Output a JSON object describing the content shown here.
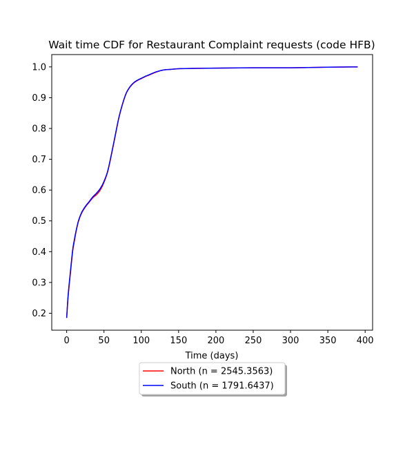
{
  "chart_data": {
    "type": "line",
    "title": "Wait time CDF for Restaurant Complaint  requests (code HFB)",
    "xlabel": "Time (days)",
    "ylabel": "",
    "xlim": [
      -20,
      410
    ],
    "ylim": [
      0.145,
      1.04
    ],
    "xticks": [
      0,
      50,
      100,
      150,
      200,
      250,
      300,
      350,
      400
    ],
    "yticks": [
      0.2,
      0.3,
      0.4,
      0.5,
      0.6,
      0.7,
      0.8,
      0.9,
      1.0
    ],
    "legend_position": "bottom-center",
    "series": [
      {
        "name": "North (n = 2545.3563)",
        "color": "#ff0000",
        "x": [
          0,
          2,
          5,
          8,
          10,
          13,
          16,
          20,
          25,
          30,
          35,
          40,
          45,
          50,
          55,
          60,
          65,
          70,
          75,
          80,
          85,
          90,
          95,
          100,
          105,
          110,
          120,
          130,
          140,
          150,
          170,
          200,
          250,
          300,
          350,
          390
        ],
        "y": [
          0.185,
          0.255,
          0.33,
          0.4,
          0.43,
          0.47,
          0.5,
          0.525,
          0.545,
          0.56,
          0.575,
          0.585,
          0.6,
          0.625,
          0.66,
          0.715,
          0.775,
          0.835,
          0.88,
          0.915,
          0.935,
          0.948,
          0.956,
          0.962,
          0.968,
          0.973,
          0.983,
          0.99,
          0.992,
          0.994,
          0.995,
          0.996,
          0.997,
          0.997,
          0.999,
          1.0
        ]
      },
      {
        "name": "South (n = 1791.6437)",
        "color": "#0000ff",
        "x": [
          0,
          2,
          5,
          8,
          10,
          13,
          16,
          20,
          25,
          30,
          35,
          40,
          45,
          50,
          55,
          60,
          65,
          70,
          75,
          80,
          85,
          90,
          95,
          100,
          105,
          110,
          120,
          130,
          140,
          150,
          170,
          200,
          250,
          300,
          350,
          390
        ],
        "y": [
          0.185,
          0.26,
          0.335,
          0.405,
          0.435,
          0.472,
          0.502,
          0.527,
          0.547,
          0.562,
          0.578,
          0.59,
          0.605,
          0.628,
          0.662,
          0.717,
          0.777,
          0.836,
          0.881,
          0.916,
          0.936,
          0.949,
          0.957,
          0.963,
          0.969,
          0.974,
          0.984,
          0.99,
          0.992,
          0.994,
          0.995,
          0.996,
          0.997,
          0.997,
          0.999,
          1.0
        ]
      }
    ]
  }
}
